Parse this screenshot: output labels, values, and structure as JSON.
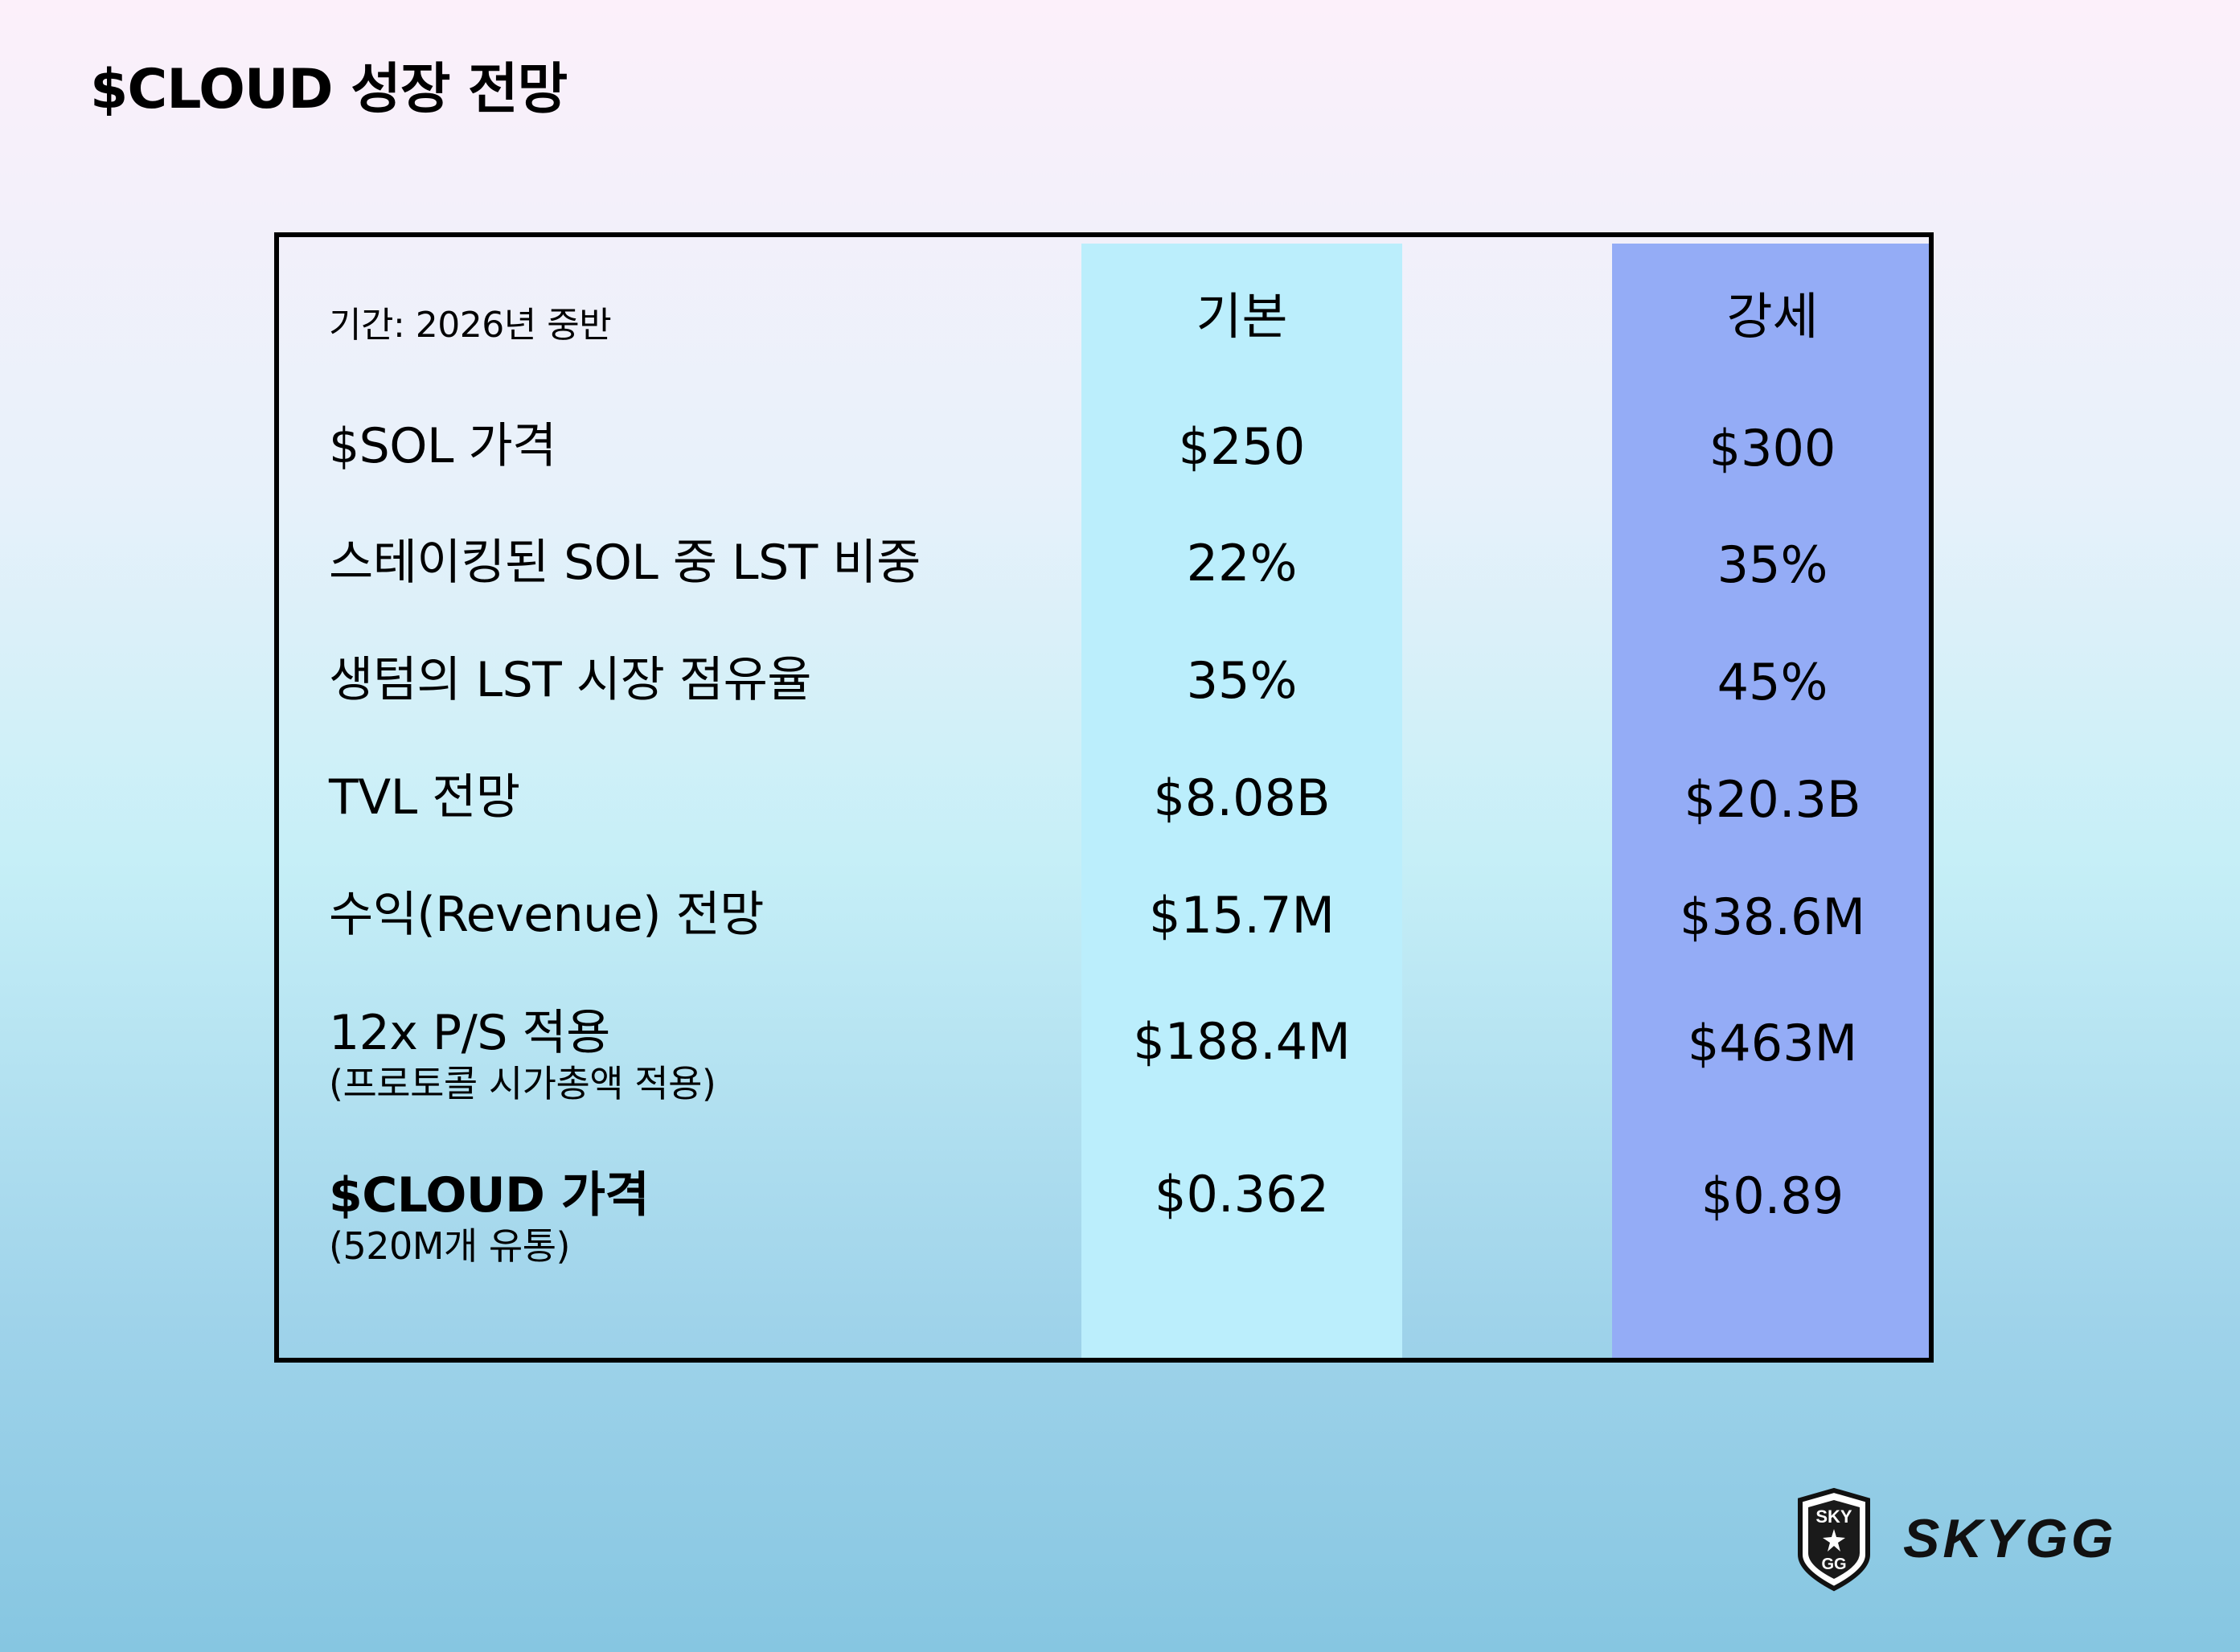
{
  "title": "$CLOUD 성장 전망",
  "table": {
    "period_label": "기간: 2026년 중반",
    "columns": [
      "기본",
      "강세"
    ],
    "rows": [
      {
        "label": "$SOL 가격",
        "sublabel": "",
        "base": "$250",
        "strong": "$300"
      },
      {
        "label": "스테이킹된 SOL 중 LST 비중",
        "sublabel": "",
        "base": "22%",
        "strong": "35%"
      },
      {
        "label": "생텀의 LST 시장 점유율",
        "sublabel": "",
        "base": "35%",
        "strong": "45%"
      },
      {
        "label": "TVL 전망",
        "sublabel": "",
        "base": "$8.08B",
        "strong": "$20.3B"
      },
      {
        "label": "수익(Revenue) 전망",
        "sublabel": "",
        "base": "$15.7M",
        "strong": "$38.6M"
      },
      {
        "label": "12x P/S 적용",
        "sublabel": "(프로토콜 시가총액 적용)",
        "base": "$188.4M",
        "strong": "$463M"
      },
      {
        "label": "$CLOUD 가격",
        "sublabel": "(520M개 유통)",
        "base": "$0.362",
        "strong": "$0.89"
      }
    ]
  },
  "brand": {
    "name": "SKYGG",
    "emblem_text_top": "SKY",
    "emblem_text_bottom": "GG",
    "icon": "shield-star-emblem"
  },
  "colors": {
    "base_column": "#bbeefc",
    "strong_column": "#94acf6",
    "border": "#000000"
  }
}
